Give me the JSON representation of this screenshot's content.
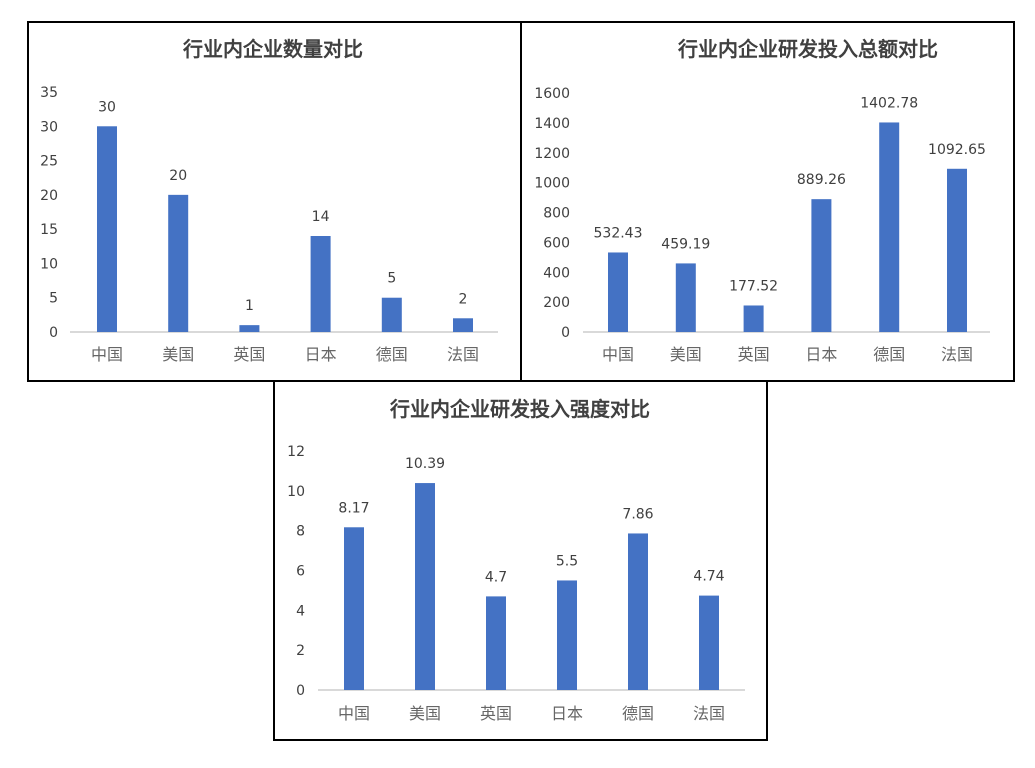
{
  "chart_data": [
    {
      "type": "bar",
      "title": "行业内企业数量对比",
      "categories": [
        "中国",
        "美国",
        "英国",
        "日本",
        "德国",
        "法国"
      ],
      "values": [
        30,
        20,
        1,
        14,
        5,
        2
      ],
      "data_labels": [
        "30",
        "20",
        "1",
        "14",
        "5",
        "2"
      ],
      "ylim": [
        0,
        35
      ],
      "yticks": [
        "0",
        "5",
        "10",
        "15",
        "20",
        "25",
        "30",
        "35"
      ],
      "grid": false,
      "legend": "none",
      "bar_color": "#4472C4"
    },
    {
      "type": "bar",
      "title": "行业内企业研发投入总额对比",
      "categories": [
        "中国",
        "美国",
        "英国",
        "日本",
        "德国",
        "法国"
      ],
      "values": [
        532.43,
        459.19,
        177.52,
        889.26,
        1402.78,
        1092.65
      ],
      "data_labels": [
        "532.43",
        "459.19",
        "177.52",
        "889.26",
        "1402.78",
        "1092.65"
      ],
      "ylim": [
        0,
        1600
      ],
      "yticks": [
        "0",
        "200",
        "400",
        "600",
        "800",
        "1000",
        "1200",
        "1400",
        "1600"
      ],
      "grid": false,
      "legend": "none",
      "bar_color": "#4472C4"
    },
    {
      "type": "bar",
      "title": "行业内企业研发投入强度对比",
      "categories": [
        "中国",
        "美国",
        "英国",
        "日本",
        "德国",
        "法国"
      ],
      "values": [
        8.17,
        10.39,
        4.7,
        5.5,
        7.86,
        4.74
      ],
      "data_labels": [
        "8.17",
        "10.39",
        "4.7",
        "5.5",
        "7.86",
        "4.74"
      ],
      "ylim": [
        0,
        12
      ],
      "yticks": [
        "0",
        "2",
        "4",
        "6",
        "8",
        "10",
        "12"
      ],
      "grid": false,
      "legend": "none",
      "bar_color": "#4472C4"
    }
  ]
}
